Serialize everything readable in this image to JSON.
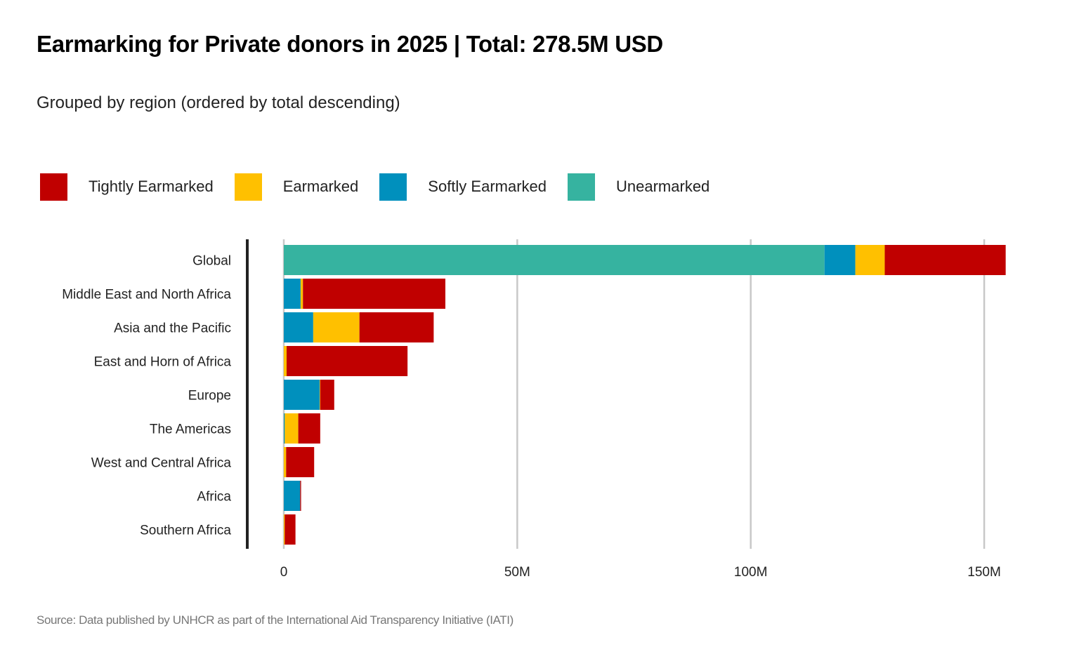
{
  "header": {
    "title": "Earmarking  for Private donors in 2025 | Total: 278.5M USD",
    "subtitle": "Grouped by region (ordered by total descending)"
  },
  "footer": {
    "source": "Source: Data published by UNHCR as part of the International Aid Transparency Initiative (IATI)"
  },
  "chart_data": {
    "type": "bar",
    "orientation": "horizontal",
    "stacked": true,
    "title": "Earmarking  for Private donors in 2025 | Total: 278.5M USD",
    "subtitle": "Grouped by region (ordered by total descending)",
    "xlabel": "",
    "ylabel": "",
    "units": "M USD",
    "xlim": [
      0,
      155
    ],
    "x_ticks": [
      0,
      50,
      100,
      150
    ],
    "x_tick_labels": [
      "0",
      "50M",
      "100M",
      "150M"
    ],
    "grid": "vertical",
    "legend_position": "top-left",
    "categories": [
      "Global",
      "Middle East and North Africa",
      "Asia and the Pacific",
      "East and Horn of Africa",
      "Europe",
      "The Americas",
      "West and Central Africa",
      "Africa",
      "Southern Africa"
    ],
    "series": [
      {
        "name": "Unearmarked",
        "color": "#36B3A0",
        "values": [
          115.8,
          0,
          0,
          0,
          0,
          0,
          0,
          0,
          0
        ]
      },
      {
        "name": "Softly Earmarked",
        "color": "#0090BD",
        "values": [
          6.6,
          3.6,
          6.3,
          0,
          7.7,
          0.2,
          0,
          3.5,
          0
        ]
      },
      {
        "name": "Earmarked",
        "color": "#FFC000",
        "values": [
          6.3,
          0.5,
          9.9,
          0.6,
          0.1,
          2.9,
          0.5,
          0,
          0.2
        ]
      },
      {
        "name": "Tightly Earmarked",
        "color": "#C00000",
        "values": [
          25.9,
          30.5,
          15.9,
          25.9,
          3.0,
          4.7,
          6.0,
          0.2,
          2.3
        ]
      }
    ],
    "legend": [
      {
        "name": "Tightly Earmarked",
        "color": "#C00000"
      },
      {
        "name": "Earmarked",
        "color": "#FFC000"
      },
      {
        "name": "Softly Earmarked",
        "color": "#0090BD"
      },
      {
        "name": "Unearmarked",
        "color": "#36B3A0"
      }
    ],
    "source": "Source: Data published by UNHCR as part of the International Aid Transparency Initiative (IATI)"
  }
}
